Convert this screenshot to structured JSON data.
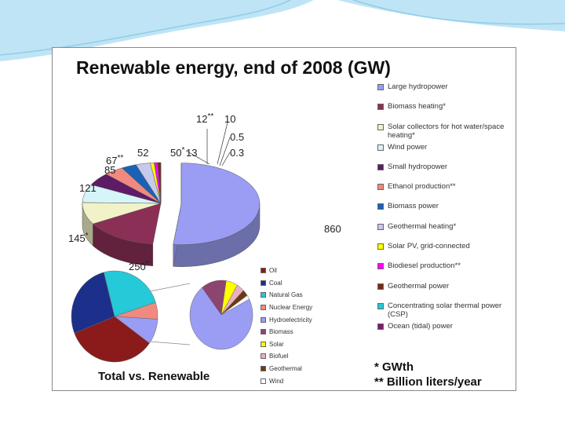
{
  "slide": {
    "accent": "#bfe4f5",
    "accent_dark": "#8fcde8"
  },
  "chart_data": [
    {
      "type": "pie",
      "title": "Renewable energy, end of 2008 (GW)",
      "categories": [
        "Large hydropower",
        "Biomass heating*",
        "Solar collectors for hot water/space heating*",
        "Wind power",
        "Small hydropower",
        "Ethanol production**",
        "Biomass power",
        "Geothermal heating*",
        "Solar PV, grid-connected",
        "Biodiesel production**",
        "Geothermal power",
        "Concentrating solar thermal power (CSP)",
        "Ocean (tidal) power"
      ],
      "values": [
        860,
        250,
        145,
        121,
        85,
        67,
        52,
        50,
        13,
        12,
        10,
        0.5,
        0.3
      ],
      "value_labels": [
        "860",
        "250",
        "145",
        "121",
        "85",
        "67",
        "52",
        "50",
        "13",
        "12",
        "10",
        "0.5",
        "0.3"
      ],
      "markers": [
        "",
        "*",
        "*",
        "",
        "",
        "**",
        "",
        "*",
        "",
        "**",
        "",
        "",
        ""
      ],
      "colors": [
        "#9a9df3",
        "#8c2f56",
        "#f2f2c8",
        "#d6f5f8",
        "#5e1b66",
        "#f08a80",
        "#1a62b5",
        "#c6c8ec",
        "#ffff00",
        "#ff00ff",
        "#7a2b13",
        "#25c9d8",
        "#7a1c6e"
      ],
      "notes": [
        "* GWth",
        "** Billion liters/year"
      ]
    },
    {
      "type": "pie",
      "title": "Total vs. Renewable",
      "categories": [
        "Oil",
        "Coal",
        "Natural Gas",
        "Nuclear Energy",
        "Hydroelectricity",
        "Biomass",
        "Solar",
        "Biofuel",
        "Geothermal",
        "Wind"
      ],
      "colors": [
        "#8b1a1a",
        "#1c2f8a",
        "#25c9d8",
        "#f08a80",
        "#9a9df3",
        "#8c4470",
        "#ffff00",
        "#e8b0c0",
        "#6b3b14",
        "#ffffff"
      ],
      "pies": [
        {
          "name": "Total",
          "values": [
            34,
            27,
            24,
            6,
            9
          ]
        },
        {
          "name": "Renewable",
          "values": [
            72,
            13,
            6,
            4,
            3,
            2
          ]
        }
      ]
    }
  ]
}
